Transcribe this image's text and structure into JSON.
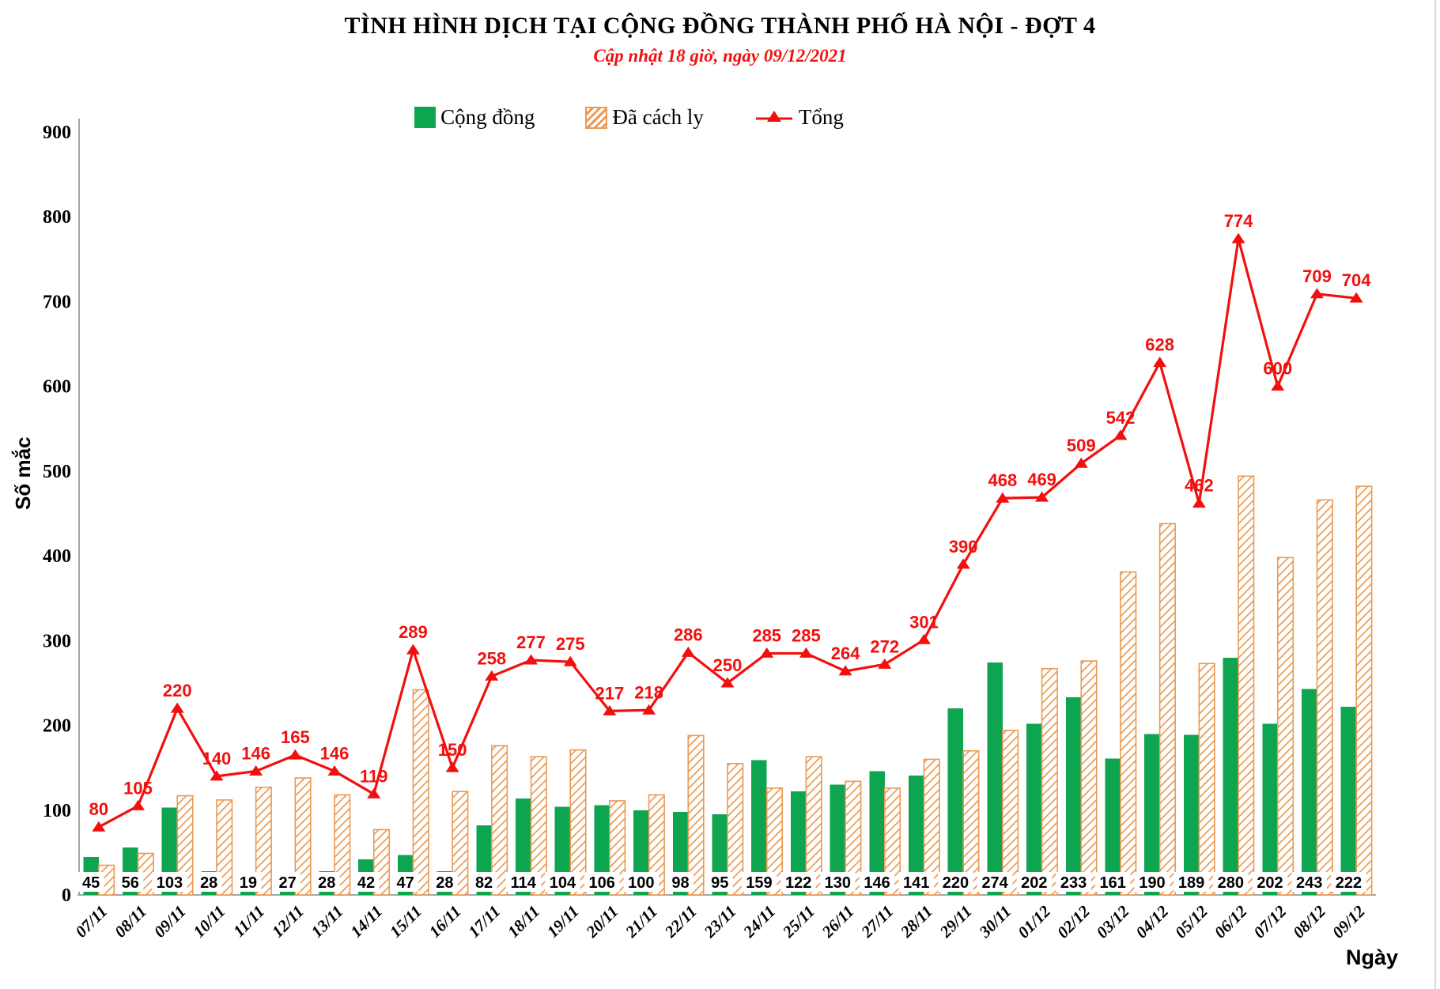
{
  "colors": {
    "green": "#0da550",
    "orange": "#ea9a54",
    "red": "#f2100e",
    "axis": "#a6a6a6",
    "label_text": "#000000"
  },
  "chart_data": {
    "type": "combo-bar-line",
    "title": "TÌNH HÌNH DỊCH TẠI CỘNG ĐỒNG THÀNH PHỐ HÀ NỘI - ĐỢT 4",
    "subtitle": "Cập nhật 18 giờ, ngày 09/12/2021",
    "ylabel": "Số mắc",
    "xlabel": "Ngày",
    "ylim": [
      0,
      900
    ],
    "ytick_step": 100,
    "gridlines": false,
    "legend_position": "top",
    "categories": [
      "07/11",
      "08/11",
      "09/11",
      "10/11",
      "11/11",
      "12/11",
      "13/11",
      "14/11",
      "15/11",
      "16/11",
      "17/11",
      "18/11",
      "19/11",
      "20/11",
      "21/11",
      "22/11",
      "23/11",
      "24/11",
      "25/11",
      "26/11",
      "27/11",
      "28/11",
      "29/11",
      "30/11",
      "01/12",
      "02/12",
      "03/12",
      "04/12",
      "05/12",
      "06/12",
      "07/12",
      "08/12",
      "09/12"
    ],
    "series": [
      {
        "name": "Cộng đồng",
        "type": "bar",
        "style": "solid",
        "color": "#0da550",
        "values": [
          45,
          56,
          103,
          28,
          19,
          27,
          28,
          42,
          47,
          28,
          82,
          114,
          104,
          106,
          100,
          98,
          95,
          159,
          122,
          130,
          146,
          141,
          220,
          274,
          202,
          233,
          161,
          190,
          189,
          280,
          202,
          243,
          222
        ]
      },
      {
        "name": "Đã cách ly",
        "type": "bar",
        "style": "hatch",
        "color": "#ea9a54",
        "values": [
          35,
          49,
          117,
          112,
          127,
          138,
          118,
          77,
          242,
          122,
          176,
          163,
          171,
          111,
          118,
          188,
          155,
          126,
          163,
          134,
          126,
          160,
          170,
          194,
          267,
          276,
          381,
          438,
          273,
          494,
          398,
          466,
          482
        ]
      },
      {
        "name": "Tổng",
        "type": "line",
        "marker": "triangle",
        "color": "#f2100e",
        "values": [
          80,
          105,
          220,
          140,
          146,
          165,
          146,
          119,
          289,
          150,
          258,
          277,
          275,
          217,
          218,
          286,
          250,
          285,
          285,
          264,
          272,
          301,
          390,
          468,
          469,
          509,
          542,
          628,
          462,
          774,
          600,
          709,
          704
        ]
      }
    ],
    "bar_label_series": "Cộng đồng",
    "line_label_series": "Tổng"
  }
}
